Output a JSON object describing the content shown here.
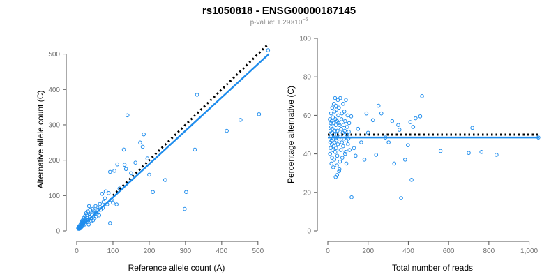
{
  "figure": {
    "title": "rs1050818 - ENSG00000187145",
    "subtitle_prefix": "p-value: 1.29×10",
    "subtitle_exponent": "−6",
    "point_color": "#1f8ded",
    "fit_color": "#1f8ded",
    "reference_color": "#000000"
  },
  "chart_data": [
    {
      "type": "scatter",
      "xlabel": "Reference allele count (A)",
      "ylabel": "Alternative allele count (C)",
      "xlim": [
        0,
        535
      ],
      "ylim": [
        0,
        515
      ],
      "xticks": [
        0,
        100,
        200,
        300,
        400,
        500
      ],
      "yticks": [
        0,
        100,
        200,
        300,
        400,
        500
      ],
      "grid": false,
      "reference_line": {
        "style": "dotted",
        "points": [
          [
            100,
            100
          ],
          [
            530,
            530
          ]
        ]
      },
      "fit_line": {
        "style": "solid",
        "points": [
          [
            10,
            10
          ],
          [
            530,
            500
          ]
        ]
      },
      "points": [
        [
          528,
          511
        ],
        [
          503,
          330
        ],
        [
          452,
          314
        ],
        [
          414,
          283
        ],
        [
          332,
          385
        ],
        [
          326,
          230
        ],
        [
          302,
          110
        ],
        [
          298,
          62
        ],
        [
          244,
          144
        ],
        [
          210,
          110
        ],
        [
          200,
          159
        ],
        [
          195,
          205
        ],
        [
          185,
          273
        ],
        [
          182,
          238
        ],
        [
          175,
          250
        ],
        [
          162,
          193
        ],
        [
          140,
          327
        ],
        [
          150,
          163
        ],
        [
          136,
          175
        ],
        [
          132,
          187
        ],
        [
          130,
          230
        ],
        [
          118,
          120
        ],
        [
          112,
          188
        ],
        [
          110,
          75
        ],
        [
          104,
          170
        ],
        [
          92,
          167
        ],
        [
          92,
          22
        ],
        [
          88,
          107
        ],
        [
          80,
          112
        ],
        [
          78,
          92
        ],
        [
          74,
          82
        ],
        [
          70,
          105
        ],
        [
          64,
          76
        ],
        [
          62,
          44
        ],
        [
          58,
          60
        ],
        [
          55,
          52
        ],
        [
          52,
          70
        ],
        [
          50,
          48
        ],
        [
          48,
          35
        ],
        [
          46,
          58
        ],
        [
          44,
          62
        ],
        [
          42,
          45
        ],
        [
          40,
          28
        ],
        [
          38,
          52
        ],
        [
          36,
          40
        ],
        [
          35,
          48
        ],
        [
          34,
          70
        ],
        [
          32,
          30
        ],
        [
          31,
          55
        ],
        [
          30,
          38
        ],
        [
          29,
          25
        ],
        [
          28,
          45
        ],
        [
          27,
          32
        ],
        [
          26,
          50
        ],
        [
          25,
          28
        ],
        [
          24,
          35
        ],
        [
          23,
          42
        ],
        [
          22,
          20
        ],
        [
          21,
          30
        ],
        [
          20,
          37
        ],
        [
          20,
          24
        ],
        [
          19,
          15
        ],
        [
          18,
          28
        ],
        [
          18,
          20
        ],
        [
          17,
          24
        ],
        [
          16,
          30
        ],
        [
          16,
          18
        ],
        [
          15,
          14
        ],
        [
          15,
          22
        ],
        [
          14,
          26
        ],
        [
          14,
          12
        ],
        [
          13,
          19
        ],
        [
          13,
          16
        ],
        [
          12,
          10
        ],
        [
          12,
          22
        ],
        [
          11,
          14
        ],
        [
          11,
          8
        ],
        [
          10,
          12
        ],
        [
          10,
          17
        ],
        [
          9,
          10
        ],
        [
          9,
          7
        ],
        [
          8,
          12
        ],
        [
          8,
          9
        ],
        [
          7,
          11
        ],
        [
          7,
          6
        ],
        [
          6,
          8
        ],
        [
          6,
          13
        ],
        [
          5,
          6
        ],
        [
          5,
          10
        ],
        [
          4,
          7
        ],
        [
          33,
          18
        ],
        [
          37,
          60
        ],
        [
          41,
          36
        ],
        [
          45,
          30
        ],
        [
          53,
          40
        ],
        [
          57,
          66
        ],
        [
          60,
          52
        ],
        [
          66,
          60
        ],
        [
          72,
          65
        ],
        [
          84,
          75
        ],
        [
          96,
          88
        ],
        [
          100,
          80
        ]
      ]
    },
    {
      "type": "scatter",
      "xlabel": "Total number of reads",
      "ylabel": "Percentage alternative (C)",
      "xlim": [
        0,
        1050
      ],
      "ylim": [
        0,
        100
      ],
      "xticks": [
        0,
        200,
        400,
        600,
        800,
        1000
      ],
      "xtick_labels": [
        "0",
        "200",
        "400",
        "600",
        "800",
        "1,000"
      ],
      "yticks": [
        0,
        20,
        40,
        60,
        80,
        100
      ],
      "grid": false,
      "reference_line": {
        "style": "dotted",
        "y": 50,
        "x": [
          0,
          1050
        ]
      },
      "fit_line": {
        "style": "solid",
        "y": 48.5,
        "x": [
          0,
          1050
        ]
      },
      "points": [
        [
          1046,
          48.5
        ],
        [
          838,
          39.5
        ],
        [
          763,
          41
        ],
        [
          718,
          53.5
        ],
        [
          700,
          40.5
        ],
        [
          560,
          41.5
        ],
        [
          468,
          70
        ],
        [
          459,
          59.5
        ],
        [
          436,
          58.5
        ],
        [
          424,
          54
        ],
        [
          410,
          56.5
        ],
        [
          416,
          26.5
        ],
        [
          398,
          44.5
        ],
        [
          384,
          37
        ],
        [
          364,
          17
        ],
        [
          356,
          52.5
        ],
        [
          350,
          55
        ],
        [
          330,
          35
        ],
        [
          320,
          57
        ],
        [
          302,
          46
        ],
        [
          286,
          48.5
        ],
        [
          266,
          61
        ],
        [
          252,
          65
        ],
        [
          240,
          39.5
        ],
        [
          224,
          57.5
        ],
        [
          200,
          51
        ],
        [
          192,
          61
        ],
        [
          182,
          37
        ],
        [
          166,
          46
        ],
        [
          150,
          53
        ],
        [
          138,
          39
        ],
        [
          130,
          43
        ],
        [
          118,
          17.5
        ],
        [
          116,
          59.5
        ],
        [
          112,
          49
        ],
        [
          108,
          42
        ],
        [
          106,
          56
        ],
        [
          104,
          51.5
        ],
        [
          102,
          48
        ],
        [
          100,
          45
        ],
        [
          98,
          60
        ],
        [
          96,
          54
        ],
        [
          94,
          50
        ],
        [
          92,
          47
        ],
        [
          90,
          68
        ],
        [
          88,
          41
        ],
        [
          86,
          57
        ],
        [
          84,
          52
        ],
        [
          82,
          62
        ],
        [
          80,
          48
        ],
        [
          78,
          55
        ],
        [
          76,
          44
        ],
        [
          74,
          51
        ],
        [
          72,
          38
        ],
        [
          70,
          46
        ],
        [
          68,
          58
        ],
        [
          66,
          53
        ],
        [
          64,
          42
        ],
        [
          62,
          49
        ],
        [
          60,
          36
        ],
        [
          58,
          55
        ],
        [
          56,
          31
        ],
        [
          54,
          48
        ],
        [
          52,
          60
        ],
        [
          50,
          45
        ],
        [
          50,
          68
        ],
        [
          48,
          52
        ],
        [
          47,
          39
        ],
        [
          46,
          57
        ],
        [
          45,
          34
        ],
        [
          44,
          50
        ],
        [
          43,
          63
        ],
        [
          42,
          47
        ],
        [
          41,
          43
        ],
        [
          40,
          55
        ],
        [
          39,
          28
        ],
        [
          38,
          58
        ],
        [
          37,
          41
        ],
        [
          36,
          69
        ],
        [
          35,
          52
        ],
        [
          34,
          46
        ],
        [
          33,
          62
        ],
        [
          32,
          37
        ],
        [
          31,
          50
        ],
        [
          30,
          66
        ],
        [
          29,
          44
        ],
        [
          28,
          56
        ],
        [
          27,
          33
        ],
        [
          26,
          48
        ],
        [
          25,
          59
        ],
        [
          24,
          42
        ],
        [
          23,
          53
        ],
        [
          22,
          64
        ],
        [
          21,
          38
        ],
        [
          20,
          51
        ],
        [
          20,
          45
        ],
        [
          19,
          57
        ],
        [
          18,
          47
        ],
        [
          18,
          35
        ],
        [
          17,
          54
        ],
        [
          16,
          61
        ],
        [
          15,
          49
        ],
        [
          14,
          43
        ],
        [
          14,
          56
        ],
        [
          13,
          52
        ],
        [
          12,
          46
        ],
        [
          11,
          40
        ],
        [
          10,
          58
        ],
        [
          55,
          64
        ],
        [
          62,
          69
        ],
        [
          70,
          61
        ],
        [
          76,
          66
        ],
        [
          86,
          40
        ],
        [
          92,
          35
        ],
        [
          46,
          29
        ],
        [
          58,
          32
        ],
        [
          40,
          65
        ],
        [
          52,
          56
        ]
      ]
    }
  ]
}
